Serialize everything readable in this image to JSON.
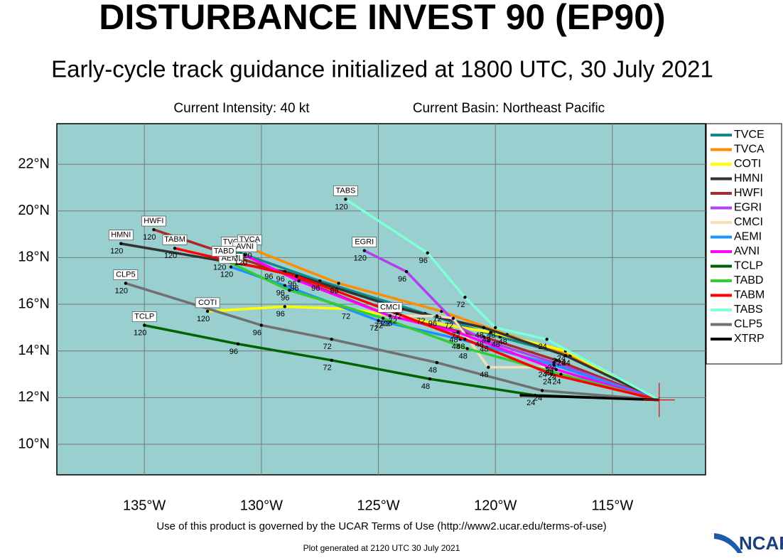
{
  "header": {
    "title": "DISTURBANCE INVEST 90 (EP90)",
    "subtitle": "Early-cycle track guidance initialized at 1800 UTC, 30 July 2021",
    "intensity": "Current Intensity: 40 kt",
    "basin": "Current Basin: Northeast Pacific"
  },
  "map": {
    "lon_range": [
      -138.74,
      -111.02
    ],
    "lat_range": [
      8.69,
      23.74
    ],
    "lon_ticks": [
      {
        "value": -135,
        "label": "135°W"
      },
      {
        "value": -130,
        "label": "130°W"
      },
      {
        "value": -125,
        "label": "125°W"
      },
      {
        "value": -120,
        "label": "120°W"
      },
      {
        "value": -115,
        "label": "115°W"
      }
    ],
    "lat_ticks": [
      {
        "value": 22,
        "label": "22°N"
      },
      {
        "value": 20,
        "label": "20°N"
      },
      {
        "value": 18,
        "label": "18°N"
      },
      {
        "value": 16,
        "label": "16°N"
      },
      {
        "value": 14,
        "label": "14°N"
      },
      {
        "value": 12,
        "label": "12°N"
      },
      {
        "value": 10,
        "label": "10°N"
      }
    ],
    "current_position": {
      "lon": -113.0,
      "lat": 11.9
    },
    "tracks": [
      {
        "name": "TVCE",
        "color": "#138a8a",
        "hours": [
          0,
          24,
          48,
          72,
          96,
          120
        ],
        "lon": [
          -113.0,
          -117.2,
          -119.8,
          -123.0,
          -127.5,
          -131.2
        ],
        "lat": [
          11.9,
          13.9,
          14.6,
          15.6,
          17.0,
          18.3
        ]
      },
      {
        "name": "TVCA",
        "color": "#ff8c00",
        "hours": [
          0,
          24,
          48,
          72,
          96,
          120
        ],
        "lon": [
          -113.0,
          -116.8,
          -119.5,
          -122.3,
          -126.7,
          -130.5
        ],
        "lat": [
          11.9,
          13.8,
          14.7,
          15.7,
          16.9,
          18.4
        ]
      },
      {
        "name": "COTI",
        "color": "#ffff00",
        "hours": [
          0,
          24,
          48,
          72,
          96,
          120
        ],
        "lon": [
          -113.0,
          -117.0,
          -120.2,
          -126.2,
          -129.0,
          -132.3
        ],
        "lat": [
          11.9,
          14.0,
          14.8,
          15.8,
          15.9,
          15.7
        ]
      },
      {
        "name": "HMNI",
        "color": "#333333",
        "hours": [
          0,
          24,
          48,
          72,
          96,
          120
        ],
        "lon": [
          -113.0,
          -117.0,
          -120.5,
          -124.0,
          -129.0,
          -136.0
        ],
        "lat": [
          11.9,
          13.8,
          15.0,
          15.8,
          17.4,
          18.6
        ]
      },
      {
        "name": "HWFI",
        "color": "#a52a2a",
        "hours": [
          0,
          24,
          48,
          72,
          96,
          120
        ],
        "lon": [
          -113.0,
          -117.4,
          -120.5,
          -124.5,
          -129.5,
          -134.6
        ],
        "lat": [
          11.9,
          13.6,
          14.6,
          15.5,
          17.5,
          19.2
        ]
      },
      {
        "name": "EGRI",
        "color": "#b040f0",
        "hours": [
          0,
          24,
          48,
          72,
          96,
          120
        ],
        "lon": [
          -113.0,
          -117.5,
          -120.3,
          -121.5,
          -123.8,
          -125.6
        ],
        "lat": [
          11.9,
          13.5,
          14.4,
          15.0,
          17.4,
          18.3
        ]
      },
      {
        "name": "CMCI",
        "color": "#f5deb3",
        "hours": [
          0,
          24,
          48,
          72,
          96,
          120
        ],
        "lon": [
          -113.0,
          -117.8,
          -120.3,
          -121.8,
          -122.5,
          -124.5
        ],
        "lat": [
          11.9,
          13.3,
          13.3,
          15.4,
          15.5,
          15.5
        ]
      },
      {
        "name": "AEMI",
        "color": "#1e90ff",
        "hours": [
          0,
          24,
          48,
          72,
          96,
          120
        ],
        "lon": [
          -113.0,
          -117.5,
          -121.5,
          -125.0,
          -129.0,
          -131.3
        ],
        "lat": [
          11.9,
          13.4,
          14.5,
          15.3,
          16.8,
          17.6
        ]
      },
      {
        "name": "AVNI",
        "color": "#ff00ff",
        "hours": [
          0,
          24,
          48,
          72,
          96,
          120
        ],
        "lon": [
          -113.0,
          -117.4,
          -121.6,
          -124.5,
          -128.4,
          -130.7
        ],
        "lat": [
          11.9,
          13.2,
          14.8,
          15.5,
          17.0,
          18.1
        ]
      },
      {
        "name": "TCLP",
        "color": "#006400",
        "hours": [
          0,
          24,
          48,
          72,
          96,
          120
        ],
        "lon": [
          -113.0,
          -118.3,
          -122.8,
          -127.0,
          -131.0,
          -135.0
        ],
        "lat": [
          11.9,
          12.1,
          12.8,
          13.6,
          14.3,
          15.1
        ]
      },
      {
        "name": "TABD",
        "color": "#32cd32",
        "hours": [
          0,
          24,
          48,
          72,
          96,
          120
        ],
        "lon": [
          -113.0,
          -117.2,
          -121.2,
          -124.8,
          -128.8,
          -131.6
        ],
        "lat": [
          11.9,
          13.0,
          14.1,
          15.4,
          16.6,
          17.9
        ]
      },
      {
        "name": "TABM",
        "color": "#ff0000",
        "hours": [
          0,
          24,
          48,
          72,
          96,
          120
        ],
        "lon": [
          -113.0,
          -117.6,
          -121.3,
          -124.2,
          -128.5,
          -133.7
        ],
        "lat": [
          11.9,
          13.0,
          14.5,
          15.6,
          17.2,
          18.4
        ]
      },
      {
        "name": "TABS",
        "color": "#7fffd4",
        "hours": [
          0,
          24,
          48,
          72,
          96,
          120
        ],
        "lon": [
          -113.0,
          -117.8,
          -120.0,
          -121.3,
          -122.9,
          -126.4
        ],
        "lat": [
          11.9,
          14.5,
          15.0,
          16.3,
          18.2,
          20.5
        ]
      },
      {
        "name": "CLP5",
        "color": "#707070",
        "hours": [
          0,
          24,
          48,
          72,
          96,
          120
        ],
        "lon": [
          -113.0,
          -118.0,
          -122.5,
          -127.0,
          -130.0,
          -135.8
        ],
        "lat": [
          11.9,
          12.3,
          13.5,
          14.5,
          15.1,
          16.9
        ]
      },
      {
        "name": "XTRP",
        "color": "#000000",
        "hours": [
          0,
          12
        ],
        "lon": [
          -113.0,
          -118.9
        ],
        "lat": [
          11.9,
          12.1
        ]
      }
    ]
  },
  "footer": {
    "terms": "Use of this product is governed by the UCAR Terms of Use (http://www2.ucar.edu/terms-of-use)",
    "generated": "Plot generated at 2120 UTC   30 July 2021",
    "logo": "NCAR"
  }
}
